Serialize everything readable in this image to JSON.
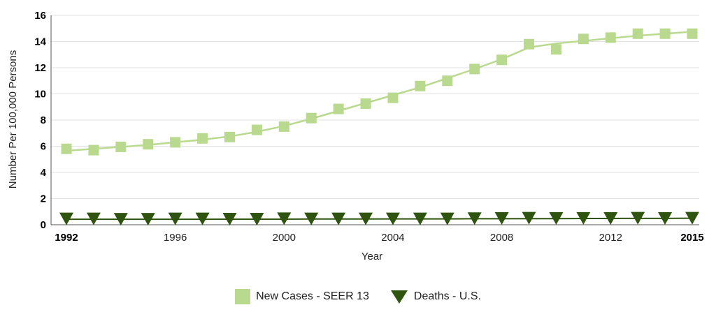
{
  "chart_data": {
    "type": "line",
    "x": [
      1992,
      1993,
      1994,
      1995,
      1996,
      1997,
      1998,
      1999,
      2000,
      2001,
      2002,
      2003,
      2004,
      2005,
      2006,
      2007,
      2008,
      2009,
      2010,
      2011,
      2012,
      2013,
      2014,
      2015
    ],
    "series": [
      {
        "name": "New Cases - SEER 13",
        "color": "#b9d98e",
        "marker": "square",
        "values": [
          5.8,
          5.7,
          5.95,
          6.15,
          6.3,
          6.6,
          6.7,
          7.25,
          7.5,
          8.15,
          8.85,
          9.25,
          9.7,
          10.6,
          11.0,
          11.9,
          12.6,
          13.8,
          13.4,
          14.2,
          14.3,
          14.6,
          14.6,
          14.6
        ],
        "trend": [
          5.65,
          5.8,
          5.95,
          6.1,
          6.3,
          6.5,
          6.75,
          7.1,
          7.55,
          8.1,
          8.7,
          9.3,
          9.9,
          10.5,
          11.2,
          11.9,
          12.65,
          13.55,
          13.85,
          14.05,
          14.25,
          14.45,
          14.6,
          14.75
        ]
      },
      {
        "name": "Deaths - U.S.",
        "color": "#2e5410",
        "marker": "triangle-down",
        "values": [
          0.45,
          0.45,
          0.42,
          0.42,
          0.45,
          0.45,
          0.43,
          0.43,
          0.46,
          0.45,
          0.45,
          0.45,
          0.45,
          0.45,
          0.45,
          0.47,
          0.48,
          0.5,
          0.48,
          0.49,
          0.48,
          0.5,
          0.48,
          0.5
        ],
        "trend": [
          0.42,
          0.42,
          0.42,
          0.42,
          0.42,
          0.42,
          0.43,
          0.43,
          0.43,
          0.44,
          0.44,
          0.44,
          0.45,
          0.45,
          0.45,
          0.46,
          0.46,
          0.47,
          0.47,
          0.48,
          0.48,
          0.49,
          0.49,
          0.5
        ]
      }
    ],
    "xlabel": "Year",
    "ylabel": "Number Per 100,000 Persons",
    "xlim": [
      1992,
      2015
    ],
    "ylim": [
      0,
      16
    ],
    "yticks": [
      0,
      2,
      4,
      6,
      8,
      10,
      12,
      14,
      16
    ],
    "xticks": [
      1992,
      1996,
      2000,
      2004,
      2008,
      2012,
      2015
    ],
    "xticks_bold": [
      1992,
      2015
    ],
    "grid": "horizontal",
    "legend_position": "bottom-center",
    "gridline_color": "#e2e2e2",
    "axis_color": "#555555"
  }
}
